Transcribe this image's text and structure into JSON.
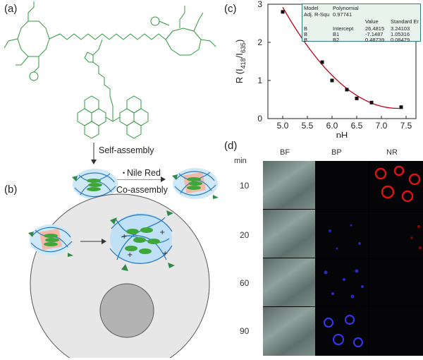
{
  "labels": {
    "a": "(a)",
    "b": "(b)",
    "c": "(c)",
    "d": "(d)"
  },
  "panel_a": {
    "self_assembly": "Self-assembly",
    "nile_red": "Nile Red",
    "co_assembly": "Co-assembly"
  },
  "chart_data": {
    "type": "scatter",
    "ylabel_main": "R (I",
    "ylabel_sub1": "418",
    "ylabel_mid": "/I",
    "ylabel_sub2": "635",
    "ylabel_end": ")",
    "xlabel": "pH",
    "xlim": [
      4.7,
      7.7
    ],
    "ylim": [
      0,
      3
    ],
    "xticks": [
      "5.0",
      "5.5",
      "6.0",
      "6.5",
      "7.0",
      "7.5"
    ],
    "yticks": [
      "0",
      "1",
      "2",
      "3"
    ],
    "x": [
      5.0,
      5.5,
      5.8,
      6.0,
      6.3,
      6.5,
      6.8,
      7.4
    ],
    "y": [
      2.8,
      2.13,
      1.48,
      1.0,
      0.76,
      0.53,
      0.42,
      0.3
    ],
    "fit": {
      "intercept": 26.4815,
      "b1": -7.1487,
      "b2": 0.48739
    },
    "fit_color": "#c0001a",
    "table": {
      "model_label": "Model",
      "model_value": "Polynomial",
      "r2_label": "Adj. R-Squ",
      "r2_value": "0.97741",
      "col_value": "Value",
      "col_err": "Standard Er",
      "rows": [
        {
          "a": "B",
          "b": "Intercept",
          "v": "26.4815",
          "e": "3.24103"
        },
        {
          "a": "B",
          "b": "B1",
          "v": "-7.1487",
          "e": "1.05316"
        },
        {
          "a": "B",
          "b": "B2",
          "v": "0.48739",
          "e": "0.08479"
        }
      ]
    }
  },
  "panel_d": {
    "unit": "min",
    "columns": [
      "BF",
      "BP",
      "NR"
    ],
    "rows": [
      "10",
      "20",
      "60",
      "90"
    ]
  }
}
